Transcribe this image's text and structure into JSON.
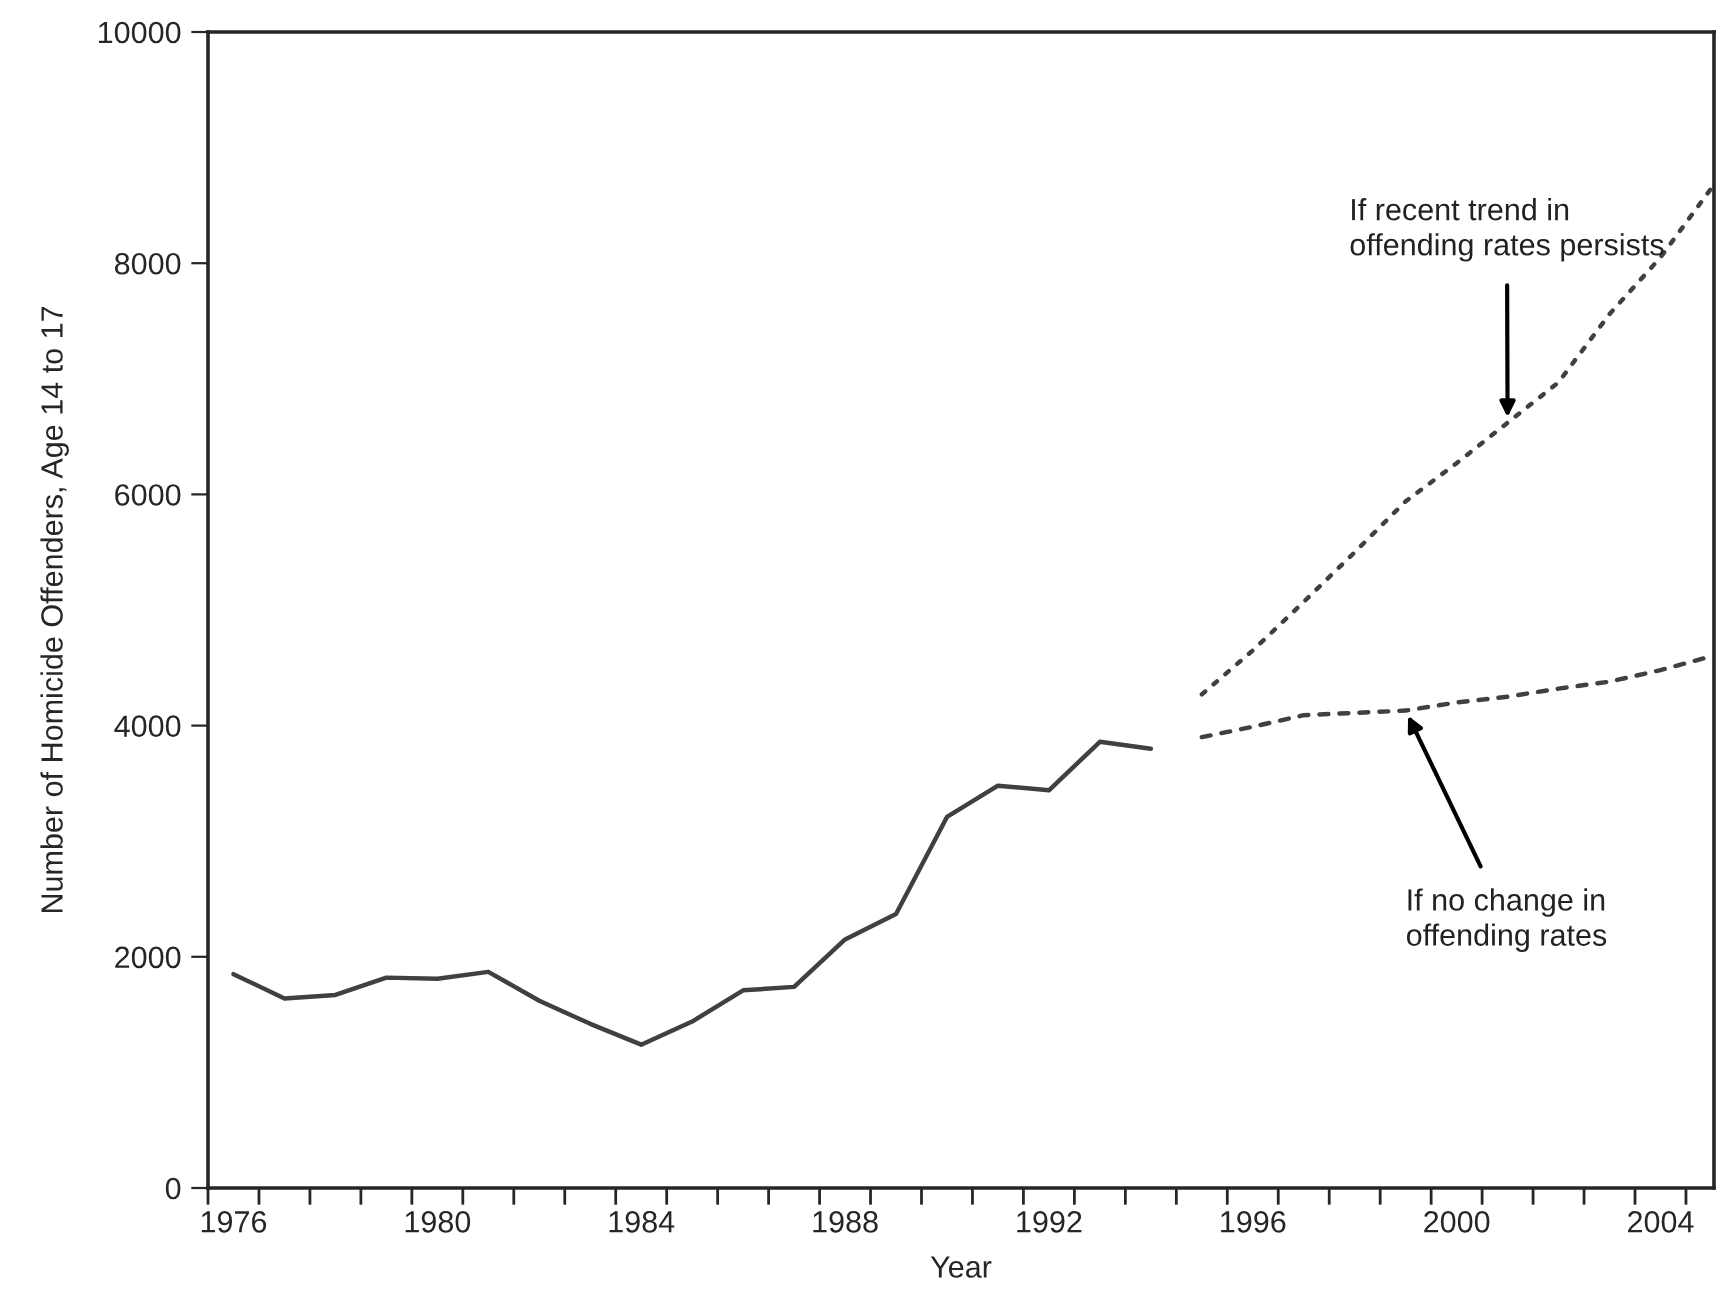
{
  "chart_data": {
    "type": "line",
    "xlabel": "Year",
    "ylabel": "Number of Homicide Offenders, Age 14 to 17",
    "series": [
      {
        "color": "#404040",
        "line_style": "solid",
        "x": [
          1976,
          1977,
          1978,
          1979,
          1980,
          1981,
          1982,
          1983,
          1984,
          1985,
          1986,
          1987,
          1988,
          1989,
          1990,
          1991,
          1992,
          1993,
          1994
        ],
        "values": [
          1850,
          1640,
          1670,
          1820,
          1810,
          1870,
          1620,
          1420,
          1240,
          1440,
          1710,
          1740,
          2150,
          2370,
          3210,
          3480,
          3440,
          3860,
          3800
        ]
      },
      {
        "color": "#404040",
        "line_style": "dotted",
        "x": [
          1995,
          1996,
          1997,
          1998,
          1999,
          2000,
          2001,
          2002,
          2003,
          2004,
          2005
        ],
        "values": [
          4270,
          4650,
          5070,
          5500,
          5940,
          6270,
          6620,
          6970,
          7560,
          8050,
          8650
        ]
      },
      {
        "color": "#404040",
        "line_style": "dashed",
        "x": [
          1995,
          1996,
          1997,
          1998,
          1999,
          2000,
          2001,
          2002,
          2003,
          2004,
          2005
        ],
        "values": [
          3900,
          3990,
          4090,
          4110,
          4130,
          4200,
          4250,
          4320,
          4380,
          4480,
          4600
        ]
      }
    ],
    "annotations": [
      {
        "text": "If recent trend in\noffending rates persists",
        "x": 2001,
        "y": 6620
      },
      {
        "text": "If no change in\noffending rates",
        "x": 1999,
        "y": 4130
      }
    ],
    "xlim": [
      1975.5,
      2005.05
    ],
    "ylim": [
      0,
      10000
    ],
    "xticks": [
      {
        "value": 1975.5,
        "label": null
      },
      {
        "value": 1976.5,
        "label": null
      },
      {
        "value": 1977.5,
        "label": null
      },
      {
        "value": 1978.5,
        "label": null
      },
      {
        "value": 1979.5,
        "label": null
      },
      {
        "value": 1980.5,
        "label": null
      },
      {
        "value": 1981.5,
        "label": null
      },
      {
        "value": 1982.5,
        "label": null
      },
      {
        "value": 1983.5,
        "label": null
      },
      {
        "value": 1984.5,
        "label": null
      },
      {
        "value": 1985.5,
        "label": null
      },
      {
        "value": 1986.5,
        "label": null
      },
      {
        "value": 1987.5,
        "label": null
      },
      {
        "value": 1988.5,
        "label": null
      },
      {
        "value": 1989.5,
        "label": null
      },
      {
        "value": 1990.5,
        "label": null
      },
      {
        "value": 1991.5,
        "label": null
      },
      {
        "value": 1992.5,
        "label": null
      },
      {
        "value": 1993.5,
        "label": null
      },
      {
        "value": 1994.5,
        "label": null
      },
      {
        "value": 1995.5,
        "label": null
      },
      {
        "value": 1996.5,
        "label": null
      },
      {
        "value": 1997.5,
        "label": null
      },
      {
        "value": 1998.5,
        "label": null
      },
      {
        "value": 1999.5,
        "label": null
      },
      {
        "value": 2000.5,
        "label": null
      },
      {
        "value": 2001.5,
        "label": null
      },
      {
        "value": 2002.5,
        "label": null
      },
      {
        "value": 2003.5,
        "label": null
      },
      {
        "value": 2004.5,
        "label": null
      },
      1976,
      1980,
      1984,
      1988,
      1992,
      1996,
      2000,
      2004
    ],
    "yticks": [
      0,
      2000,
      4000,
      6000,
      8000,
      10000
    ],
    "grid": false,
    "legend": false
  }
}
